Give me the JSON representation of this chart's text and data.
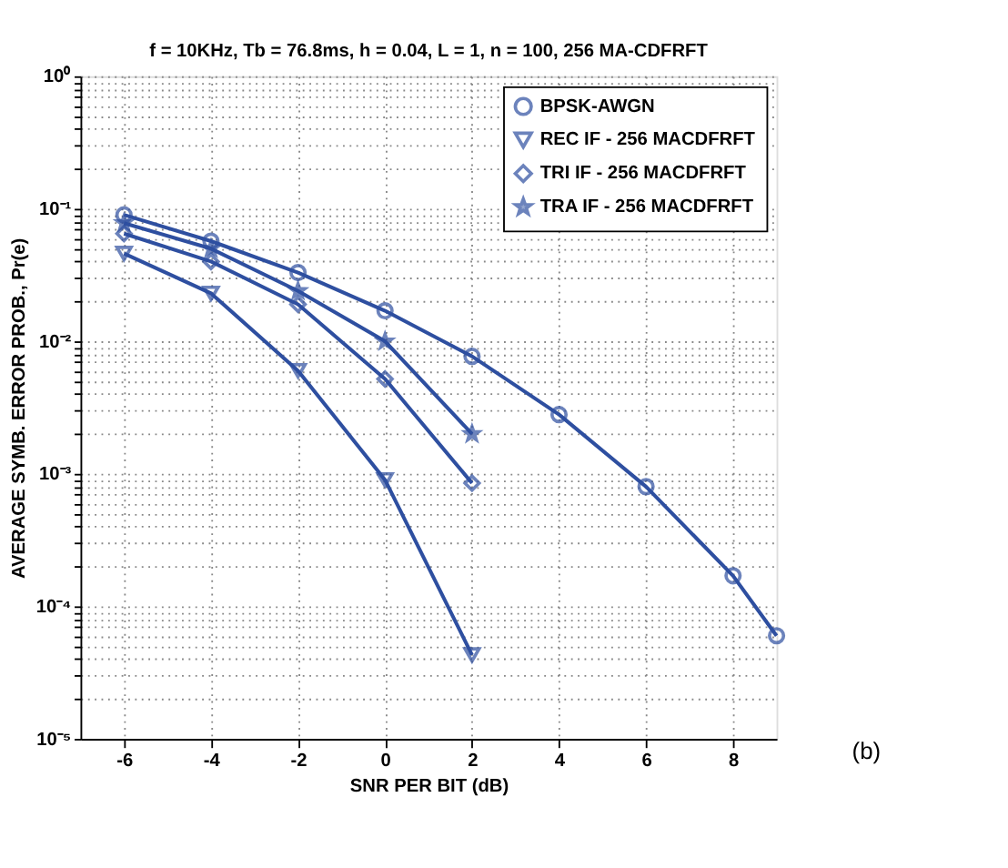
{
  "chart_data": {
    "type": "line",
    "title": "f = 10KHz, Tb = 76.8ms, h = 0.04, L = 1, n = 100, 256 MA-CDFRFT",
    "xlabel": "SNR PER BIT (dB)",
    "ylabel": "AVERAGE SYMB. ERROR PROB.,   Pr(e)",
    "log": true,
    "grid": true,
    "legend": "top right",
    "line_style": "solid",
    "xlim": [
      -7,
      9
    ],
    "xticks": [
      -6,
      -4,
      -2,
      0,
      2,
      4,
      6,
      8
    ],
    "ylim": [
      1e-05,
      1
    ],
    "yticks": [
      {
        "value": 1e-05,
        "label": "10⁻⁵"
      },
      {
        "value": 2e-05,
        "label": null
      },
      {
        "value": 3e-05,
        "label": null
      },
      {
        "value": 4e-05,
        "label": null
      },
      {
        "value": 5e-05,
        "label": null
      },
      {
        "value": 6e-05,
        "label": null
      },
      {
        "value": 7e-05,
        "label": null
      },
      {
        "value": 8e-05,
        "label": null
      },
      {
        "value": 9e-05,
        "label": null
      },
      {
        "value": 0.0001,
        "label": "10⁻⁴"
      },
      {
        "value": 0.0002,
        "label": null
      },
      {
        "value": 0.0003,
        "label": null
      },
      {
        "value": 0.0004,
        "label": null
      },
      {
        "value": 0.0005,
        "label": null
      },
      {
        "value": 0.0006,
        "label": null
      },
      {
        "value": 0.0007,
        "label": null
      },
      {
        "value": 0.0008,
        "label": null
      },
      {
        "value": 0.0009,
        "label": null
      },
      {
        "value": 0.001,
        "label": "10⁻³"
      },
      {
        "value": 0.002,
        "label": null
      },
      {
        "value": 0.003,
        "label": null
      },
      {
        "value": 0.004,
        "label": null
      },
      {
        "value": 0.005,
        "label": null
      },
      {
        "value": 0.006,
        "label": null
      },
      {
        "value": 0.007,
        "label": null
      },
      {
        "value": 0.008,
        "label": null
      },
      {
        "value": 0.009,
        "label": null
      },
      {
        "value": 0.01,
        "label": "10⁻²"
      },
      {
        "value": 0.02,
        "label": null
      },
      {
        "value": 0.03,
        "label": null
      },
      {
        "value": 0.04,
        "label": null
      },
      {
        "value": 0.05,
        "label": null
      },
      {
        "value": 0.06,
        "label": null
      },
      {
        "value": 0.07,
        "label": null
      },
      {
        "value": 0.08,
        "label": null
      },
      {
        "value": 0.09,
        "label": null
      },
      {
        "value": 0.1,
        "label": "10⁻¹"
      },
      {
        "value": 0.2,
        "label": null
      },
      {
        "value": 0.3,
        "label": null
      },
      {
        "value": 0.4,
        "label": null
      },
      {
        "value": 0.5,
        "label": null
      },
      {
        "value": 0.6,
        "label": null
      },
      {
        "value": 0.7,
        "label": null
      },
      {
        "value": 0.8,
        "label": null
      },
      {
        "value": 0.9,
        "label": null
      },
      {
        "value": 1,
        "label": "10⁰"
      }
    ],
    "annotations": [
      "(b)"
    ],
    "series": [
      {
        "name": "BPSK-AWGN",
        "color": "#2e4fa0",
        "marker": "circle",
        "x": [
          -6,
          -4,
          -2,
          0,
          2,
          4,
          6,
          8,
          9
        ],
        "values": [
          0.09,
          0.057,
          0.033,
          0.017,
          0.0077,
          0.0028,
          0.0008,
          0.00017,
          6e-05
        ]
      },
      {
        "name": "REC IF - 256 MACDFRFT",
        "color": "#2e4fa0",
        "marker": "triangle",
        "x": [
          -6,
          -4,
          -2,
          0,
          2
        ],
        "values": [
          0.046,
          0.023,
          0.006,
          0.0009,
          4.3e-05
        ]
      },
      {
        "name": "TRI IF - 256 MACDFRFT",
        "color": "#2e4fa0",
        "marker": "diamond",
        "x": [
          -6,
          -4,
          -2,
          0,
          2
        ],
        "values": [
          0.065,
          0.04,
          0.019,
          0.0052,
          0.00085
        ]
      },
      {
        "name": "TRA IF - 256 MACDFRFT",
        "color": "#2e4fa0",
        "marker": "star",
        "x": [
          -6,
          -4,
          -2,
          0,
          2
        ],
        "values": [
          0.078,
          0.05,
          0.024,
          0.01,
          0.002
        ]
      }
    ]
  }
}
